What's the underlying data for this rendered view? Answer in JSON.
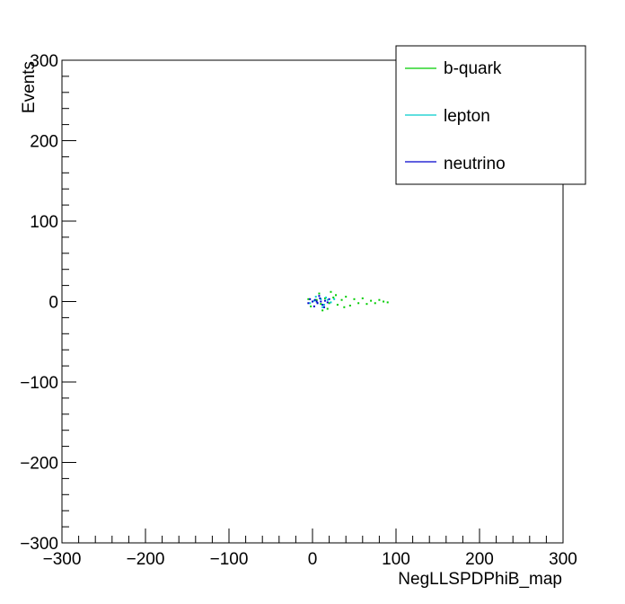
{
  "chart_data": {
    "type": "scatter",
    "title": "",
    "xlabel": "NegLLSPDPhiB_map",
    "ylabel": "Events",
    "xlim": [
      -300,
      300
    ],
    "ylim": [
      -300,
      300
    ],
    "xticks": [
      -300,
      -200,
      -100,
      0,
      100,
      200,
      300
    ],
    "yticks": [
      -300,
      -200,
      -100,
      0,
      100,
      200,
      300
    ],
    "xtick_labels": [
      "−300",
      "−200",
      "−100",
      "0",
      "100",
      "200",
      "300"
    ],
    "ytick_labels": [
      "−300",
      "−200",
      "−100",
      "0",
      "100",
      "200",
      "300"
    ],
    "grid": false,
    "legend_position": "top-right",
    "series": [
      {
        "name": "b-quark",
        "color": "#00cc00",
        "points": [
          [
            0,
            0
          ],
          [
            5,
            2
          ],
          [
            10,
            -3
          ],
          [
            15,
            4
          ],
          [
            20,
            -2
          ],
          [
            25,
            5
          ],
          [
            30,
            -4
          ],
          [
            35,
            2
          ],
          [
            40,
            6
          ],
          [
            45,
            -5
          ],
          [
            50,
            3
          ],
          [
            55,
            -2
          ],
          [
            60,
            4
          ],
          [
            65,
            -3
          ],
          [
            70,
            1
          ],
          [
            75,
            -2
          ],
          [
            80,
            2
          ],
          [
            85,
            0
          ],
          [
            90,
            -1
          ],
          [
            -5,
            3
          ],
          [
            -2,
            -6
          ],
          [
            8,
            10
          ],
          [
            18,
            -9
          ],
          [
            28,
            8
          ],
          [
            38,
            -7
          ],
          [
            12,
            -11
          ],
          [
            22,
            12
          ]
        ]
      },
      {
        "name": "lepton",
        "color": "#00cccc",
        "points": [
          [
            2,
            1
          ],
          [
            6,
            -2
          ],
          [
            10,
            3
          ],
          [
            14,
            -4
          ],
          [
            18,
            2
          ],
          [
            22,
            -1
          ],
          [
            26,
            3
          ],
          [
            -3,
            -2
          ],
          [
            4,
            6
          ],
          [
            12,
            -7
          ],
          [
            16,
            5
          ]
        ]
      },
      {
        "name": "neutrino",
        "color": "#0000cc",
        "points": [
          [
            0,
            0
          ],
          [
            3,
            2
          ],
          [
            6,
            -2
          ],
          [
            9,
            4
          ],
          [
            12,
            -4
          ],
          [
            15,
            1
          ],
          [
            18,
            -1
          ],
          [
            -3,
            3
          ],
          [
            -5,
            -2
          ],
          [
            2,
            -6
          ],
          [
            8,
            7
          ],
          [
            14,
            -7
          ],
          [
            20,
            3
          ],
          [
            5,
            0
          ],
          [
            10,
            0
          ]
        ]
      }
    ]
  }
}
